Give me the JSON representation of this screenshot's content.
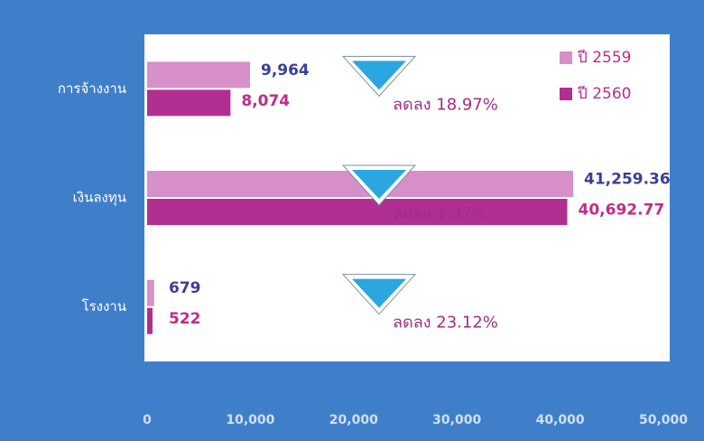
{
  "chart_data": {
    "type": "bar",
    "orientation": "horizontal",
    "categories": [
      "การจ้างงาน",
      "เงินลงทุน",
      "โรงงาน"
    ],
    "series": [
      {
        "name": "ปี 2559",
        "color": "#d68fc9",
        "label_color": "#3a3f96",
        "values": [
          9964,
          41259.36,
          679
        ],
        "value_labels": [
          "9,964",
          "41,259.36",
          "679"
        ]
      },
      {
        "name": "ปี 2560",
        "color": "#b12f90",
        "label_color": "#c22a8a",
        "values": [
          8074,
          40692.77,
          522
        ],
        "value_labels": [
          "8,074",
          "40,692.77",
          "522"
        ]
      }
    ],
    "annotations": [
      "ลดลง 18.97%",
      "ลดลง 1.37%",
      "ลดลง 23.12%"
    ],
    "xlim": [
      0,
      50000
    ],
    "xticks": [
      0,
      {
        "value": 10000,
        "label": "10,000"
      },
      {
        "value": 20000,
        "label": "20,000"
      },
      {
        "value": 30000,
        "label": "30,000"
      },
      {
        "value": 40000,
        "label": "40,000"
      },
      {
        "value": 50000,
        "label": "50,000"
      }
    ],
    "legend": "top-right",
    "grid": false
  }
}
